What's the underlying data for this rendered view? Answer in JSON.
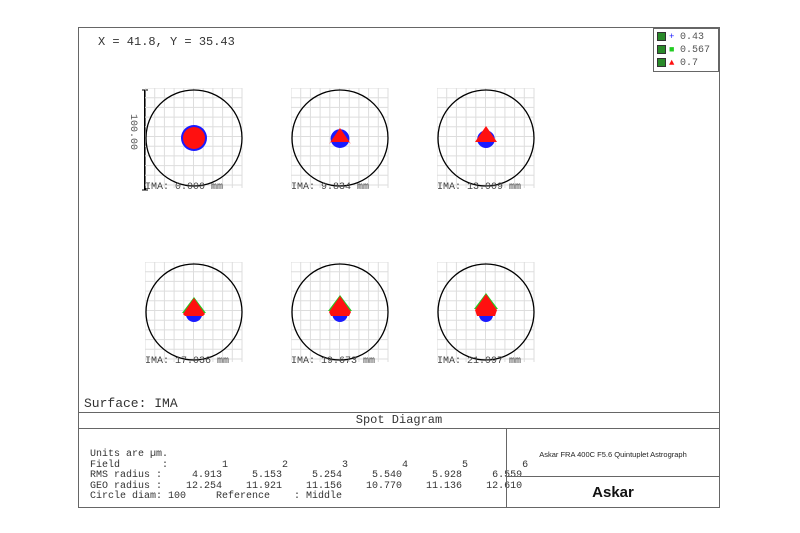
{
  "cursor": "X = 41.8, Y = 35.43",
  "legend": [
    {
      "label": "0.43",
      "color": "#1a1aff",
      "symbol": "+"
    },
    {
      "label": "0.567",
      "color": "#22cc22",
      "symbol": "■"
    },
    {
      "label": "0.7",
      "color": "#ff1010",
      "symbol": "▲"
    }
  ],
  "scale_label": "100.00",
  "fields": [
    {
      "label": "IMA: 0.000 mm"
    },
    {
      "label": "IMA: 9.834 mm"
    },
    {
      "label": "IMA: 13.909 mm"
    },
    {
      "label": "IMA: 17.036 mm"
    },
    {
      "label": "IMA: 19.673 mm"
    },
    {
      "label": "IMA: 21.997 mm"
    }
  ],
  "surface": "Surface: IMA",
  "title": "Spot Diagram",
  "stats": {
    "units": "Units are µm.",
    "field_row": "Field       :         1         2         3         4         5         6",
    "rms_row": "RMS radius :     4.913     5.153     5.254     5.540     5.928     6.559",
    "geo_row": "GEO radius :    12.254    11.921    11.156    10.770    11.136    12.610",
    "circle_row": "Circle diam: 100     Reference    : Middle"
  },
  "project": "Askar FRA 400C F5.6 Quintuplet Astrograph",
  "logo": "Askar"
}
